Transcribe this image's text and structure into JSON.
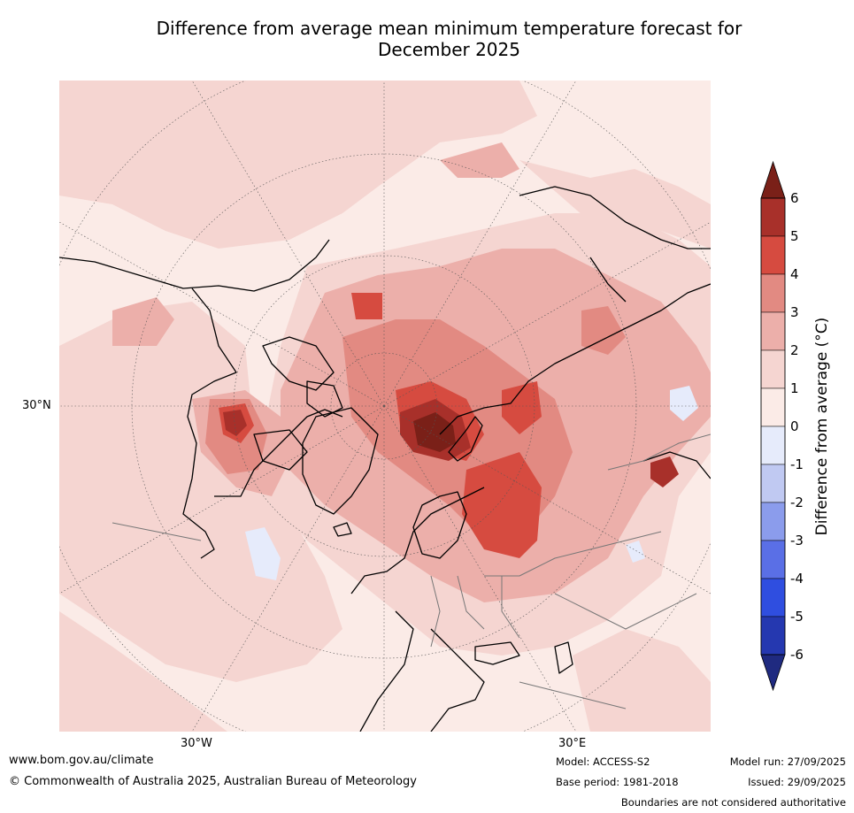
{
  "title": {
    "line1": "Difference from average mean minimum temperature forecast for",
    "line2": "December 2025"
  },
  "map": {
    "lat_label": "30°N",
    "lon_labels": [
      "30°W",
      "30°E"
    ],
    "palette": {
      "bg": "#fbebe7",
      "l1": "#f5d5d1",
      "l2": "#ecafaa",
      "l3": "#e28a82",
      "l4": "#d64b40",
      "l5": "#a8302a",
      "l6": "#7a2018",
      "neg1": "#e6ebfb"
    }
  },
  "colorbar": {
    "label": "Difference from average (°C)",
    "ticks": [
      "6",
      "5",
      "4",
      "3",
      "2",
      "1",
      "0",
      "-1",
      "-2",
      "-3",
      "-4",
      "-5",
      "-6"
    ],
    "colors": [
      "#7a2018",
      "#a8302a",
      "#d64b40",
      "#e28a82",
      "#ecafaa",
      "#f5d5d1",
      "#fbebe7",
      "#e6ebfb",
      "#c0c9f2",
      "#8b9cec",
      "#5a6fe6",
      "#2f4ee0",
      "#2538b0",
      "#1f2a80"
    ]
  },
  "footer": {
    "website": "www.bom.gov.au/climate",
    "copyright": "© Commonwealth of Australia 2025, Australian Bureau of Meteorology",
    "model": "Model: ACCESS-S2",
    "base_period": "Base period: 1981-2018",
    "model_run": "Model run: 27/09/2025",
    "issued": "Issued: 29/09/2025",
    "disclaimer": "Boundaries are not considered authoritative"
  }
}
